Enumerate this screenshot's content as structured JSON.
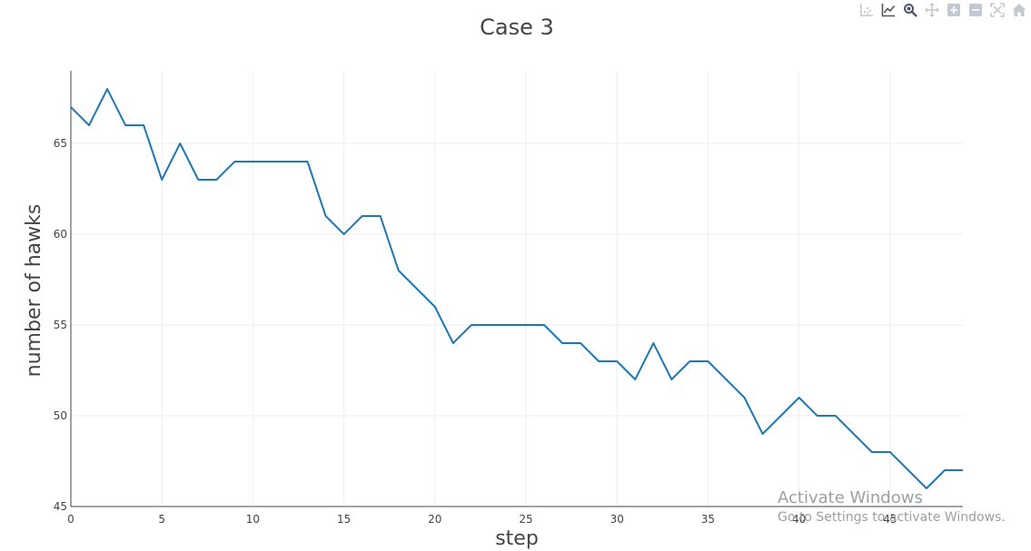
{
  "toolbar": {
    "icons": [
      "compare-data-icon",
      "show-closest-icon",
      "zoom-icon",
      "pan-icon",
      "zoom-in-icon",
      "zoom-out-icon",
      "autoscale-icon",
      "reset-axes-icon"
    ]
  },
  "watermark": {
    "title": "Activate Windows",
    "subtitle": "Go to Settings to activate Windows."
  },
  "colors": {
    "line": "#1f77b4",
    "grid": "#eeeeee",
    "axis": "#444444",
    "icon": "#c3c9d0"
  },
  "chart_data": {
    "type": "line",
    "title": "Case 3",
    "xlabel": "step",
    "ylabel": "number of hawks",
    "xlim": [
      0,
      49
    ],
    "ylim": [
      45,
      69
    ],
    "xticks": [
      0,
      5,
      10,
      15,
      20,
      25,
      30,
      35,
      40,
      45
    ],
    "yticks": [
      45,
      50,
      55,
      60,
      65
    ],
    "grid": true,
    "series": [
      {
        "x": [
          0,
          1,
          2,
          3,
          4,
          5,
          6,
          7,
          8,
          9,
          10,
          11,
          12,
          13,
          14,
          15,
          16,
          17,
          18,
          19,
          20,
          21,
          22,
          23,
          24,
          25,
          26,
          27,
          28,
          29,
          30,
          31,
          32,
          33,
          34,
          35,
          36,
          37,
          38,
          39,
          40,
          41,
          42,
          43,
          44,
          45,
          46,
          47,
          48,
          49
        ],
        "y": [
          67,
          66,
          68,
          66,
          66,
          63,
          65,
          63,
          63,
          64,
          64,
          64,
          64,
          64,
          61,
          60,
          61,
          61,
          58,
          57,
          56,
          54,
          55,
          55,
          55,
          55,
          55,
          54,
          54,
          53,
          53,
          52,
          54,
          52,
          53,
          53,
          52,
          51,
          49,
          50,
          51,
          50,
          50,
          49,
          48,
          48,
          47,
          46,
          47,
          47
        ]
      }
    ]
  }
}
